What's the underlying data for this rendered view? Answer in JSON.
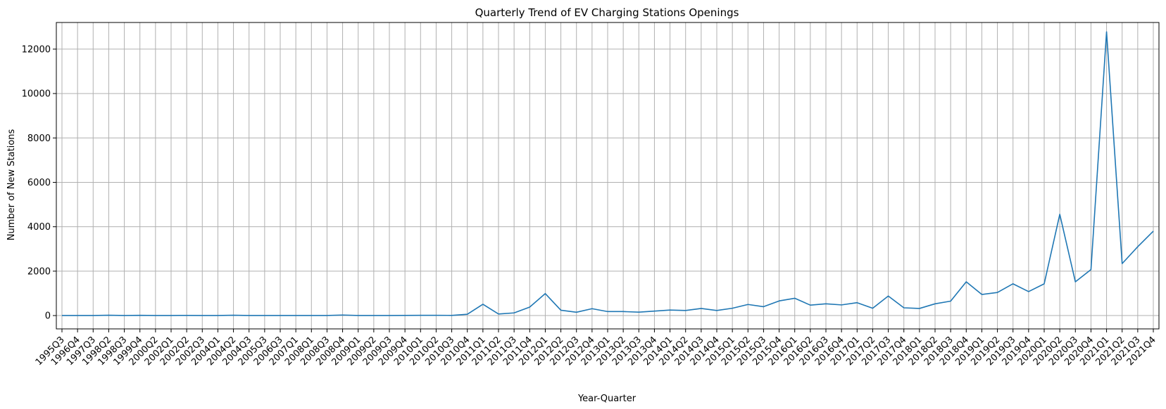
{
  "chart_data": {
    "type": "line",
    "title": "Quarterly Trend of EV Charging Stations Openings",
    "xlabel": "Year-Quarter",
    "ylabel": "Number of New Stations",
    "ylim": [
      -600,
      13200
    ],
    "yticks": [
      0,
      2000,
      4000,
      6000,
      8000,
      10000,
      12000
    ],
    "grid": true,
    "line_color": "#1f77b4",
    "categories": [
      "1995Q3",
      "1996Q4",
      "1997Q3",
      "1998Q2",
      "1998Q3",
      "1999Q4",
      "2000Q2",
      "2002Q1",
      "2002Q2",
      "2002Q3",
      "2004Q1",
      "2004Q2",
      "2004Q3",
      "2005Q3",
      "2006Q3",
      "2007Q1",
      "2008Q1",
      "2008Q3",
      "2008Q4",
      "2009Q1",
      "2009Q2",
      "2009Q3",
      "2009Q4",
      "2010Q1",
      "2010Q2",
      "2010Q3",
      "2010Q4",
      "2011Q1",
      "2011Q2",
      "2011Q3",
      "2011Q4",
      "2012Q1",
      "2012Q2",
      "2012Q3",
      "2012Q4",
      "2013Q1",
      "2013Q2",
      "2013Q3",
      "2013Q4",
      "2014Q1",
      "2014Q2",
      "2014Q3",
      "2014Q4",
      "2015Q1",
      "2015Q2",
      "2015Q3",
      "2015Q4",
      "2016Q1",
      "2016Q2",
      "2016Q3",
      "2016Q4",
      "2017Q1",
      "2017Q2",
      "2017Q3",
      "2017Q4",
      "2018Q1",
      "2018Q2",
      "2018Q3",
      "2018Q4",
      "2019Q1",
      "2019Q2",
      "2019Q3",
      "2019Q4",
      "2020Q1",
      "2020Q2",
      "2020Q3",
      "2020Q4",
      "2021Q1",
      "2021Q2",
      "2021Q3",
      "2021Q4"
    ],
    "values": [
      2,
      3,
      5,
      15,
      2,
      12,
      3,
      4,
      8,
      2,
      3,
      15,
      2,
      3,
      2,
      3,
      2,
      3,
      25,
      4,
      3,
      5,
      6,
      10,
      12,
      8,
      60,
      510,
      70,
      120,
      380,
      990,
      240,
      150,
      310,
      180,
      180,
      155,
      200,
      250,
      230,
      320,
      230,
      330,
      500,
      400,
      660,
      780,
      470,
      530,
      480,
      580,
      330,
      880,
      350,
      320,
      530,
      650,
      1520,
      950,
      1040,
      1430,
      1080,
      1430,
      4560,
      1520,
      2070,
      12780,
      2340,
      3100,
      3800
    ]
  }
}
